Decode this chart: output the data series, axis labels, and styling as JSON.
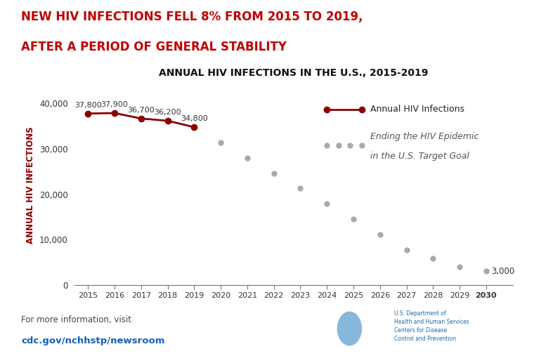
{
  "title": "ANNUAL HIV INFECTIONS IN THE U.S., 2015-2019",
  "headline_line1": "NEW HIV INFECTIONS FELL 8% FROM 2015 TO 2019,",
  "headline_line2": "AFTER A PERIOD OF GENERAL STABILITY",
  "headline_color": "#C00000",
  "actual_years": [
    2015,
    2016,
    2017,
    2018,
    2019
  ],
  "actual_values": [
    37800,
    37900,
    36700,
    36200,
    34800
  ],
  "actual_labels": [
    "37,800",
    "37,900",
    "36,700",
    "36,200",
    "34,800"
  ],
  "target_years": [
    2019,
    2020,
    2021,
    2022,
    2023,
    2024,
    2025,
    2026,
    2027,
    2028,
    2029,
    2030
  ],
  "target_values": [
    34800,
    31418,
    28036,
    24655,
    21273,
    17891,
    14509,
    11127,
    7745,
    5830,
    4000,
    3000
  ],
  "target_label": "3,000",
  "actual_color": "#8B0000",
  "target_color": "#AAAAAA",
  "ylabel": "ANNUAL HIV INFECTIONS",
  "ylim": [
    0,
    44000
  ],
  "yticks": [
    0,
    10000,
    20000,
    30000,
    40000
  ],
  "ytick_labels": [
    "0",
    "10,000",
    "20,000",
    "30,000",
    "40,000"
  ],
  "xlim_min": 2014.5,
  "xlim_max": 2031.0,
  "xticks": [
    2015,
    2016,
    2017,
    2018,
    2019,
    2020,
    2021,
    2022,
    2023,
    2024,
    2025,
    2026,
    2027,
    2028,
    2029,
    2030
  ],
  "footer_text1": "For more information, visit",
  "footer_link": "cdc.gov/nchhstp/newsroom",
  "footer_color": "#444444",
  "footer_link_color": "#1060C0",
  "background_color": "#FFFFFF",
  "legend_label_actual": "Annual HIV Infections",
  "legend_label_target_line1": "Ending the HIV Epidemic",
  "legend_label_target_line2": "in the U.S. Target Goal",
  "cdc_box_color": "#1a6baa",
  "cdc_text_color": "#1a6baa"
}
